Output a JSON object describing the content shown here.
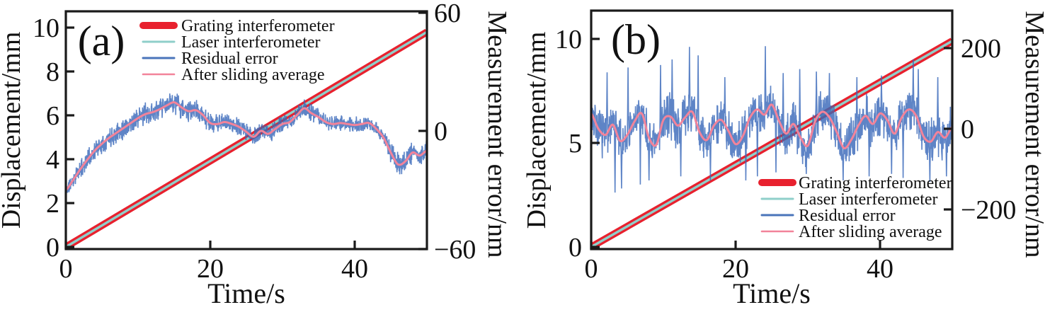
{
  "colors": {
    "grating": "#e8212e",
    "laser": "#8fcfca",
    "residual": "#4a74ba",
    "residual_line": "#5f8cce",
    "sliding": "#f2839a",
    "axis": "#1a1a1a",
    "background": "#ffffff"
  },
  "chart_data": [
    {
      "id": "a",
      "type": "line",
      "panel_label": "(a)",
      "x_axis": {
        "label": "Time/s",
        "range": [
          0,
          50
        ],
        "ticks": [
          0,
          20,
          40
        ]
      },
      "y_left": {
        "label": "Displacement/mm",
        "range": [
          0,
          10.8
        ],
        "ticks": [
          0,
          2,
          4,
          6,
          8,
          10
        ]
      },
      "y_right": {
        "label": "Measurement error/nm",
        "range": [
          -60,
          60
        ],
        "ticks": [
          60,
          0,
          -60
        ]
      },
      "legend": {
        "position": "top-left",
        "items": [
          {
            "label": "Grating interferometer",
            "series": "grating"
          },
          {
            "label": "Laser interferometer",
            "series": "laser"
          },
          {
            "label": "Residual error",
            "series": "residual"
          },
          {
            "label": "After sliding average",
            "series": "sliding"
          }
        ]
      },
      "series": {
        "grating_interferometer": {
          "axis": "left",
          "unit": "mm",
          "x": [
            0,
            50
          ],
          "y": [
            0,
            9.8
          ]
        },
        "laser_interferometer": {
          "axis": "left",
          "unit": "mm",
          "x": [
            0,
            50
          ],
          "y": [
            0,
            9.8
          ]
        },
        "after_sliding_average": {
          "axis": "right",
          "unit": "nm",
          "t_start": 0,
          "t_step": 1,
          "values": [
            -30,
            -25,
            -19.5,
            -14.5,
            -10,
            -6.5,
            -3.5,
            -1,
            1.5,
            4,
            6.5,
            8.5,
            9.5,
            11,
            13,
            14.5,
            12,
            10,
            10.5,
            8,
            4,
            3.5,
            4.5,
            3.5,
            2,
            -0.5,
            -3,
            0,
            -1.5,
            1,
            3.5,
            4.5,
            8,
            11.5,
            9,
            7,
            4.5,
            3.5,
            4,
            3.5,
            3,
            3.5,
            4,
            1,
            -3.5,
            -11,
            -17,
            -15.5,
            -11,
            -12.5,
            -10
          ]
        },
        "residual_error": {
          "axis": "right",
          "unit": "nm",
          "follows": "after_sliding_average",
          "noise": {
            "seed": 11,
            "points": 1700,
            "amp_t": [
              0,
              3,
              8,
              15,
              22,
              28,
              34,
              40,
              44,
              45.5,
              48,
              50
            ],
            "amp": [
              3.5,
              4.8,
              5.5,
              5.5,
              4.6,
              4.2,
              4.6,
              4.2,
              3.6,
              6,
              5.5,
              4.5
            ]
          },
          "spikes": []
        }
      }
    },
    {
      "id": "b",
      "type": "line",
      "panel_label": "(b)",
      "x_axis": {
        "label": "Time/s",
        "range": [
          0,
          50
        ],
        "ticks": [
          0,
          20,
          40
        ]
      },
      "y_left": {
        "label": "Displacement/mm",
        "range": [
          0,
          11.4
        ],
        "ticks": [
          0,
          5,
          10
        ]
      },
      "y_right": {
        "label": "Measurement error/nm",
        "range": [
          -295,
          295
        ],
        "ticks": [
          200,
          0,
          -200
        ]
      },
      "legend": {
        "position": "bottom-right",
        "items": [
          {
            "label": "Grating interferometer",
            "series": "grating"
          },
          {
            "label": "Laser interferometer",
            "series": "laser"
          },
          {
            "label": "Residual error",
            "series": "residual"
          },
          {
            "label": "After sliding average",
            "series": "sliding"
          }
        ]
      },
      "series": {
        "grating_interferometer": {
          "axis": "left",
          "unit": "mm",
          "x": [
            0,
            50
          ],
          "y": [
            0,
            9.9
          ]
        },
        "laser_interferometer": {
          "axis": "left",
          "unit": "mm",
          "x": [
            0,
            50
          ],
          "y": [
            0,
            9.9
          ]
        },
        "after_sliding_average": {
          "axis": "right",
          "unit": "nm",
          "t_start": 0,
          "t_step": 1,
          "values": [
            38,
            0,
            -15,
            10,
            -30,
            -15,
            18,
            38,
            -22,
            -40,
            22,
            30,
            8,
            28,
            42,
            -8,
            -28,
            8,
            22,
            -5,
            -38,
            -18,
            28,
            48,
            35,
            60,
            20,
            -12,
            12,
            -22,
            -42,
            18,
            42,
            28,
            -8,
            -48,
            -28,
            8,
            32,
            12,
            38,
            22,
            -12,
            28,
            48,
            32,
            -18,
            -32,
            -8,
            -22,
            5
          ]
        },
        "residual_error": {
          "axis": "right",
          "unit": "nm",
          "follows": "after_sliding_average",
          "noise": {
            "seed": 7,
            "points": 1500,
            "amp_t": [
              0,
              50
            ],
            "amp": [
              55,
              55
            ]
          },
          "spikes": [
            [
              2.2,
              140
            ],
            [
              3.3,
              -158
            ],
            [
              4.2,
              -148
            ],
            [
              5.1,
              152
            ],
            [
              6.8,
              -138
            ],
            [
              8.0,
              -128
            ],
            [
              9.6,
              158
            ],
            [
              11.2,
              172
            ],
            [
              12.4,
              -118
            ],
            [
              13.6,
              203
            ],
            [
              14.8,
              182
            ],
            [
              16.5,
              -128
            ],
            [
              18.5,
              128
            ],
            [
              21.4,
              -128
            ],
            [
              23.0,
              -118
            ],
            [
              24.1,
              205
            ],
            [
              25.6,
              -108
            ],
            [
              26.6,
              138
            ],
            [
              28.9,
              148
            ],
            [
              29.8,
              -112
            ],
            [
              31.2,
              142
            ],
            [
              33.0,
              138
            ],
            [
              34.9,
              -128
            ],
            [
              36.8,
              128
            ],
            [
              38.5,
              -118
            ],
            [
              40.2,
              132
            ],
            [
              41.6,
              -112
            ],
            [
              43.2,
              -122
            ],
            [
              44.6,
              172
            ],
            [
              45.3,
              148
            ],
            [
              46.9,
              -132
            ],
            [
              48.0,
              128
            ],
            [
              49.2,
              -118
            ]
          ]
        }
      }
    }
  ]
}
